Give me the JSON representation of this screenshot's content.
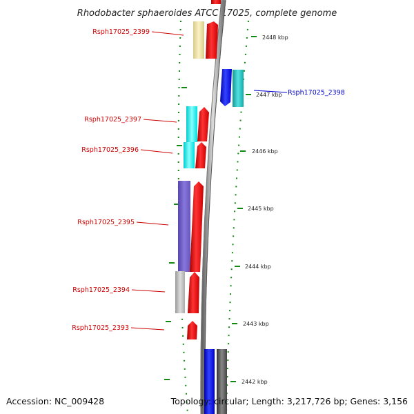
{
  "title": "Rhodobacter sphaeroides ATCC 17025, complete genome",
  "footer": {
    "accession": "Accession: NC_009428",
    "topology": "Topology: circular; Length: 3,217,726 bp; Genes: 3,156"
  },
  "colors": {
    "forward_strand": "#ee1111",
    "reverse_strand": "#1111ee",
    "ticks": "#118811",
    "backbone": "#888888"
  },
  "ticks": [
    {
      "label": "2448 kbp"
    },
    {
      "label": "2447 kbp"
    },
    {
      "label": "2446 kbp"
    },
    {
      "label": "2445 kbp"
    },
    {
      "label": "2444 kbp"
    },
    {
      "label": "2443 kbp"
    },
    {
      "label": "2442 kbp"
    }
  ],
  "genes": [
    {
      "name": "Rsph17025_2399",
      "strand": "forward",
      "color": "#ee1111",
      "cog_color": "#f0e4a0"
    },
    {
      "name": "Rsph17025_2398",
      "strand": "reverse",
      "color": "#1111ee",
      "cog_color": "#22cccc"
    },
    {
      "name": "Rsph17025_2397",
      "strand": "forward",
      "color": "#ee1111",
      "cog_color": "#11eeee"
    },
    {
      "name": "Rsph17025_2396",
      "strand": "forward",
      "color": "#ee1111",
      "cog_color": "#11eeee"
    },
    {
      "name": "Rsph17025_2395",
      "strand": "forward",
      "color": "#ee1111",
      "cog_color": "#7766cc"
    },
    {
      "name": "Rsph17025_2394",
      "strand": "forward",
      "color": "#ee1111",
      "cog_color": "#bbbbbb"
    },
    {
      "name": "Rsph17025_2393",
      "strand": "forward",
      "color": "#ee1111",
      "cog_color": ""
    }
  ],
  "unlabeled_genes": [
    {
      "strand": "reverse",
      "color": "#1111ee",
      "cog_color": "#555555"
    },
    {
      "strand": "forward",
      "color": "#ee1111",
      "cog_color": ""
    }
  ]
}
